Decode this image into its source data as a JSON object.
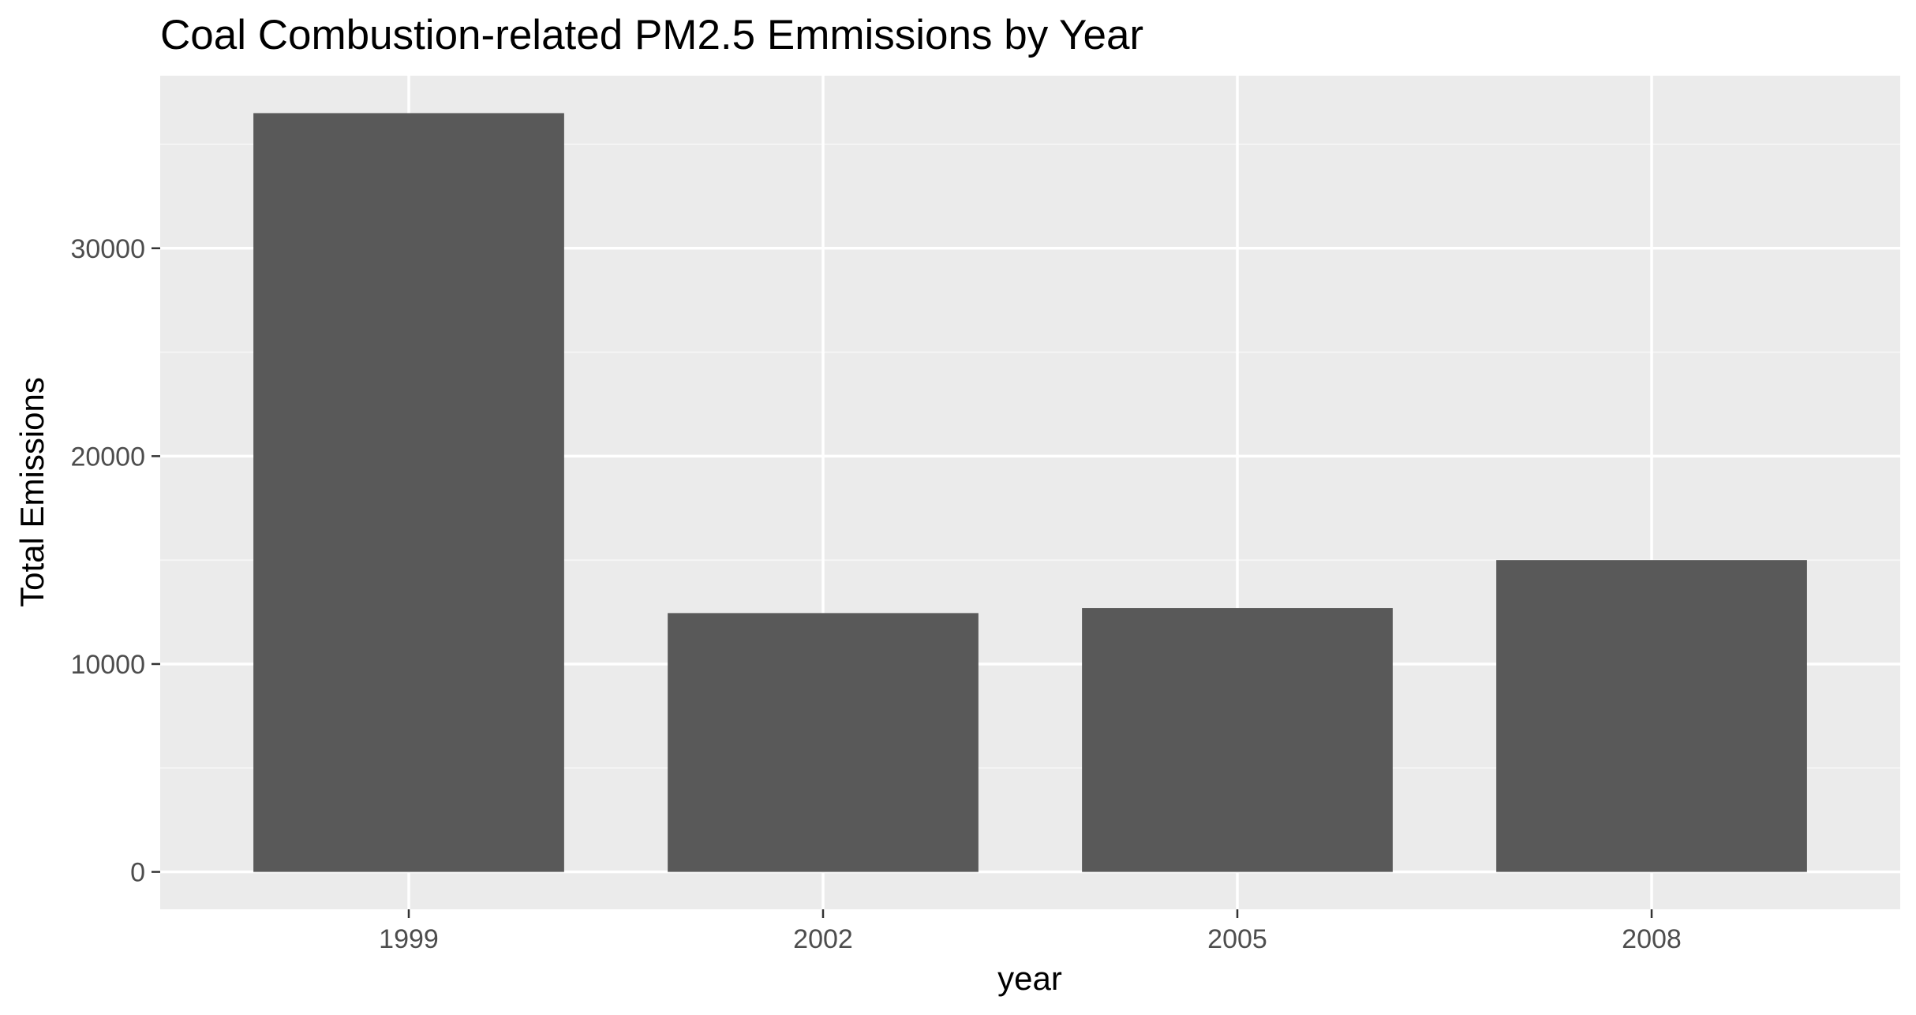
{
  "chart_data": {
    "type": "bar",
    "title": "Coal Combustion-related PM2.5 Emmissions by Year",
    "xlabel": "year",
    "ylabel": "Total Emissions",
    "categories": [
      "1999",
      "2002",
      "2005",
      "2008"
    ],
    "values": [
      36500,
      12450,
      12690,
      15000
    ],
    "ylim": [
      -1800,
      38300
    ],
    "yticks": [
      0,
      10000,
      20000,
      30000
    ],
    "ytick_labels": [
      "0",
      "10000",
      "20000",
      "30000"
    ],
    "grid": true,
    "legend": "none",
    "colors": {
      "bar": "#595959",
      "panel_background": "#ebebeb",
      "grid_major": "#ffffff",
      "grid_minor": "#f6f6f6",
      "tick_label": "#4d4d4d",
      "tick_mark": "#333333"
    }
  }
}
